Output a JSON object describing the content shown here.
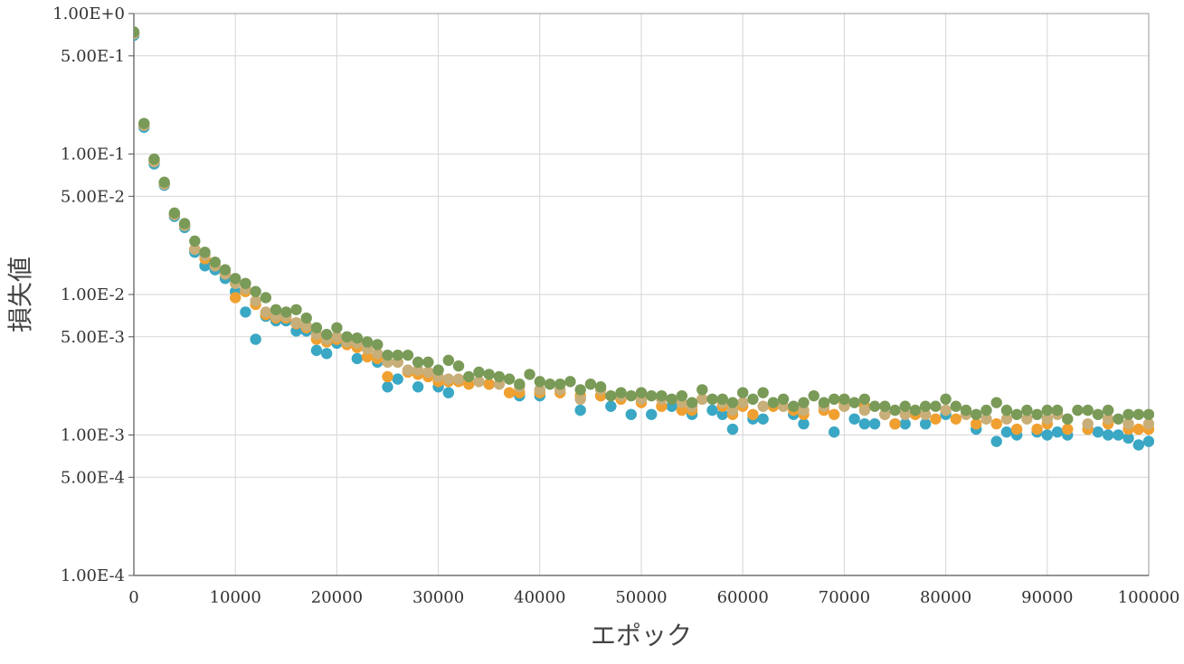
{
  "chart_data": {
    "type": "scatter",
    "title": "",
    "xlabel": "エポック",
    "ylabel": "損失値",
    "x_scale": "linear",
    "y_scale": "log",
    "xlim": [
      0,
      100000
    ],
    "ylim": [
      0.0001,
      1.0
    ],
    "x_ticks": [
      0,
      10000,
      20000,
      30000,
      40000,
      50000,
      60000,
      70000,
      80000,
      90000,
      100000
    ],
    "x_tick_labels": [
      "0",
      "10000",
      "20000",
      "30000",
      "40000",
      "50000",
      "60000",
      "70000",
      "80000",
      "90000",
      "100000"
    ],
    "y_ticks": [
      1.0,
      0.5,
      0.1,
      0.05,
      0.01,
      0.005,
      0.001,
      0.0005,
      0.0001
    ],
    "y_tick_labels": [
      "1.00E+0",
      "5.00E-1",
      "1.00E-1",
      "5.00E-2",
      "1.00E-2",
      "5.00E-3",
      "1.00E-3",
      "5.00E-4",
      "1.00E-4"
    ],
    "grid": true,
    "legend": "none",
    "series": [
      {
        "color": "#3aa7c4",
        "x": [
          0,
          1000,
          2000,
          3000,
          4000,
          5000,
          6000,
          7000,
          8000,
          9000,
          10000,
          11000,
          12000,
          13000,
          14000,
          15000,
          16000,
          17000,
          18000,
          19000,
          20000,
          22000,
          24000,
          25000,
          26000,
          28000,
          30000,
          31000,
          35000,
          38000,
          40000,
          44000,
          46000,
          47000,
          49000,
          50000,
          51000,
          53000,
          55000,
          57000,
          58000,
          59000,
          61000,
          62000,
          65000,
          66000,
          69000,
          71000,
          72000,
          73000,
          75000,
          76000,
          78000,
          80000,
          83000,
          85000,
          86000,
          87000,
          89000,
          90000,
          91000,
          92000,
          94000,
          95000,
          96000,
          97000,
          98000,
          99000,
          100000
        ],
        "y": [
          0.7,
          0.155,
          0.085,
          0.06,
          0.036,
          0.03,
          0.02,
          0.016,
          0.015,
          0.013,
          0.0105,
          0.0075,
          0.0048,
          0.007,
          0.0065,
          0.0065,
          0.0055,
          0.0055,
          0.004,
          0.0038,
          0.0045,
          0.0035,
          0.0033,
          0.0022,
          0.0025,
          0.0022,
          0.0022,
          0.002,
          0.0023,
          0.0019,
          0.0019,
          0.0015,
          0.0019,
          0.0016,
          0.0014,
          0.0019,
          0.0014,
          0.0016,
          0.0014,
          0.0015,
          0.0014,
          0.0011,
          0.0013,
          0.0013,
          0.0014,
          0.0012,
          0.00105,
          0.0013,
          0.0012,
          0.0012,
          0.0012,
          0.0012,
          0.0012,
          0.0014,
          0.0011,
          0.0009,
          0.00105,
          0.001,
          0.00105,
          0.001,
          0.00105,
          0.001,
          0.0011,
          0.00105,
          0.001,
          0.001,
          0.00095,
          0.00085,
          0.0009
        ]
      },
      {
        "color": "#f0a030",
        "x": [
          0,
          1000,
          2000,
          3000,
          4000,
          5000,
          6000,
          7000,
          8000,
          9000,
          10000,
          11000,
          12000,
          13000,
          14000,
          15000,
          16000,
          17000,
          18000,
          19000,
          20000,
          21000,
          22000,
          23000,
          24000,
          25000,
          26000,
          27000,
          28000,
          29000,
          30000,
          31000,
          32000,
          33000,
          35000,
          37000,
          38000,
          40000,
          42000,
          44000,
          46000,
          48000,
          50000,
          52000,
          54000,
          55000,
          56000,
          58000,
          59000,
          60000,
          61000,
          63000,
          65000,
          66000,
          68000,
          69000,
          70000,
          72000,
          74000,
          75000,
          77000,
          79000,
          81000,
          83000,
          85000,
          87000,
          89000,
          90000,
          92000,
          94000,
          96000,
          98000,
          99000,
          100000
        ],
        "y": [
          0.72,
          0.16,
          0.09,
          0.062,
          0.037,
          0.031,
          0.021,
          0.018,
          0.016,
          0.014,
          0.0095,
          0.0105,
          0.0085,
          0.0072,
          0.0068,
          0.0068,
          0.0062,
          0.0058,
          0.0048,
          0.0046,
          0.0048,
          0.0044,
          0.0042,
          0.0036,
          0.0035,
          0.0026,
          0.0033,
          0.0028,
          0.0027,
          0.0026,
          0.0024,
          0.0024,
          0.0024,
          0.0023,
          0.0023,
          0.002,
          0.002,
          0.002,
          0.002,
          0.0019,
          0.0019,
          0.0018,
          0.0017,
          0.0016,
          0.0015,
          0.0015,
          0.0018,
          0.0016,
          0.0014,
          0.0016,
          0.0014,
          0.0016,
          0.0015,
          0.0014,
          0.0015,
          0.0014,
          0.0017,
          0.0016,
          0.0014,
          0.0012,
          0.0014,
          0.0013,
          0.0013,
          0.0012,
          0.0012,
          0.0011,
          0.0011,
          0.0012,
          0.0011,
          0.0011,
          0.0012,
          0.0011,
          0.0011,
          0.0011
        ]
      },
      {
        "color": "#c8ae78",
        "x": [
          0,
          1000,
          2000,
          3000,
          4000,
          5000,
          6000,
          7000,
          8000,
          9000,
          10000,
          11000,
          12000,
          13000,
          14000,
          15000,
          16000,
          17000,
          18000,
          19000,
          20000,
          21000,
          22000,
          23000,
          24000,
          25000,
          26000,
          27000,
          28000,
          29000,
          30000,
          31000,
          32000,
          34000,
          36000,
          38000,
          40000,
          42000,
          44000,
          46000,
          48000,
          50000,
          52000,
          54000,
          55000,
          56000,
          58000,
          59000,
          60000,
          62000,
          64000,
          66000,
          68000,
          70000,
          72000,
          74000,
          76000,
          78000,
          80000,
          82000,
          84000,
          86000,
          88000,
          90000,
          91000,
          92000,
          94000,
          96000,
          98000,
          100000
        ],
        "y": [
          0.72,
          0.16,
          0.088,
          0.061,
          0.037,
          0.031,
          0.021,
          0.019,
          0.016,
          0.014,
          0.012,
          0.011,
          0.009,
          0.0075,
          0.007,
          0.007,
          0.0063,
          0.006,
          0.0052,
          0.0048,
          0.005,
          0.0046,
          0.0045,
          0.0041,
          0.0038,
          0.0033,
          0.0033,
          0.0029,
          0.0029,
          0.0028,
          0.0026,
          0.0025,
          0.0025,
          0.0024,
          0.0023,
          0.0022,
          0.0021,
          0.0021,
          0.0018,
          0.0021,
          0.0019,
          0.0018,
          0.0018,
          0.0017,
          0.0016,
          0.0018,
          0.0017,
          0.0015,
          0.0017,
          0.0016,
          0.0016,
          0.0015,
          0.0016,
          0.0016,
          0.0015,
          0.0014,
          0.0014,
          0.0014,
          0.0015,
          0.0014,
          0.0013,
          0.0013,
          0.0013,
          0.0013,
          0.0014,
          0.0013,
          0.0012,
          0.0013,
          0.0012,
          0.0012
        ]
      },
      {
        "color": "#7a9a58",
        "x": [
          0,
          1000,
          2000,
          3000,
          4000,
          5000,
          6000,
          7000,
          8000,
          9000,
          10000,
          11000,
          12000,
          13000,
          14000,
          15000,
          16000,
          17000,
          18000,
          19000,
          20000,
          21000,
          22000,
          23000,
          24000,
          25000,
          26000,
          27000,
          28000,
          29000,
          30000,
          31000,
          32000,
          33000,
          34000,
          35000,
          36000,
          37000,
          38000,
          39000,
          40000,
          41000,
          42000,
          43000,
          44000,
          45000,
          46000,
          47000,
          48000,
          49000,
          50000,
          51000,
          52000,
          53000,
          54000,
          55000,
          56000,
          57000,
          58000,
          59000,
          60000,
          61000,
          62000,
          63000,
          64000,
          65000,
          66000,
          67000,
          68000,
          69000,
          70000,
          71000,
          72000,
          73000,
          74000,
          75000,
          76000,
          77000,
          78000,
          79000,
          80000,
          81000,
          82000,
          83000,
          84000,
          85000,
          86000,
          87000,
          88000,
          89000,
          90000,
          91000,
          92000,
          93000,
          94000,
          95000,
          96000,
          97000,
          98000,
          99000,
          100000
        ],
        "y": [
          0.74,
          0.165,
          0.092,
          0.063,
          0.038,
          0.032,
          0.024,
          0.02,
          0.017,
          0.015,
          0.013,
          0.012,
          0.0105,
          0.0095,
          0.0078,
          0.0075,
          0.0078,
          0.0068,
          0.0058,
          0.0052,
          0.0058,
          0.005,
          0.0049,
          0.0046,
          0.0044,
          0.0037,
          0.0037,
          0.0037,
          0.0033,
          0.0033,
          0.0029,
          0.0034,
          0.0031,
          0.0026,
          0.0028,
          0.0027,
          0.0026,
          0.0025,
          0.0023,
          0.0027,
          0.0024,
          0.0023,
          0.0023,
          0.0024,
          0.0021,
          0.0023,
          0.0022,
          0.0019,
          0.002,
          0.0019,
          0.002,
          0.0019,
          0.0019,
          0.0018,
          0.0019,
          0.0017,
          0.0021,
          0.0018,
          0.0018,
          0.0017,
          0.002,
          0.0018,
          0.002,
          0.0017,
          0.0018,
          0.0016,
          0.0017,
          0.0019,
          0.0017,
          0.0018,
          0.0018,
          0.0017,
          0.0018,
          0.0016,
          0.0016,
          0.0015,
          0.0016,
          0.0015,
          0.0016,
          0.0016,
          0.0018,
          0.0016,
          0.0015,
          0.0014,
          0.0015,
          0.0017,
          0.0015,
          0.0014,
          0.0015,
          0.0014,
          0.0015,
          0.0015,
          0.0013,
          0.0015,
          0.0015,
          0.0014,
          0.0015,
          0.0013,
          0.0014,
          0.0014,
          0.0014
        ]
      }
    ]
  }
}
